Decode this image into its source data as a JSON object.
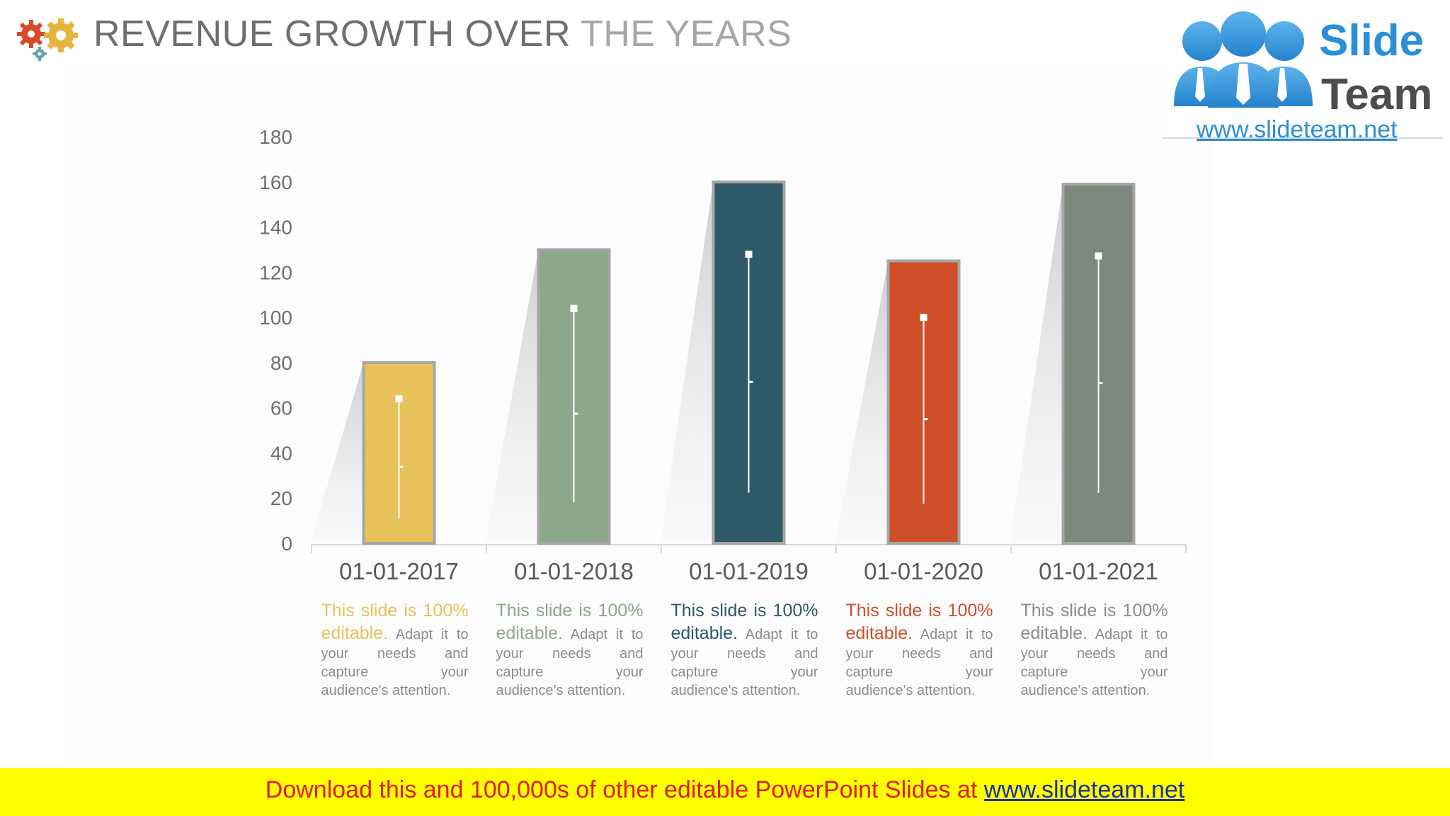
{
  "header": {
    "title_dark": "REVENUE GROWTH OVER",
    "title_light": "THE YEARS",
    "icon": "gears-icon"
  },
  "logo": {
    "line1": "Slide",
    "line2": "Team",
    "url": "www.slideteam.net",
    "icon": "people-icon"
  },
  "chart_data": {
    "type": "bar",
    "title": "REVENUE GROWTH OVER THE YEARS",
    "categories": [
      "01-01-2017",
      "01-01-2018",
      "01-01-2019",
      "01-01-2020",
      "01-01-2021"
    ],
    "values": [
      80,
      130,
      160,
      125,
      159
    ],
    "colors": [
      "#e8c25a",
      "#8da78b",
      "#2e5a68",
      "#cf4f28",
      "#7c877d"
    ],
    "ylim": [
      0,
      180
    ],
    "yticks": [
      0,
      20,
      40,
      60,
      80,
      100,
      120,
      140,
      160,
      180
    ],
    "xlabel": "",
    "ylabel": "",
    "grid": false,
    "legend": "none"
  },
  "descriptions": [
    {
      "lead": "This slide is 100% editable.",
      "body": "Adapt it to your needs and capture your audience's attention.",
      "lead_color": "#e8c25a"
    },
    {
      "lead": "This slide is 100% editable.",
      "body": "Adapt it to your needs and capture your audience's attention.",
      "lead_color": "#8da78b"
    },
    {
      "lead": "This slide is 100% editable.",
      "body": "Adapt it to your needs and capture your audience's attention.",
      "lead_color": "#2e5a68"
    },
    {
      "lead": "This slide is 100% editable.",
      "body": "Adapt it to your needs and capture your audience's attention.",
      "lead_color": "#cf4f28"
    },
    {
      "lead": "This slide is 100% editable.",
      "body": "Adapt it to your needs and capture your audience's attention.",
      "lead_color": "#8c8c8c"
    }
  ],
  "footer": {
    "text": "Download this and 100,000s of other editable PowerPoint Slides at",
    "link": "www.slideteam.net"
  }
}
